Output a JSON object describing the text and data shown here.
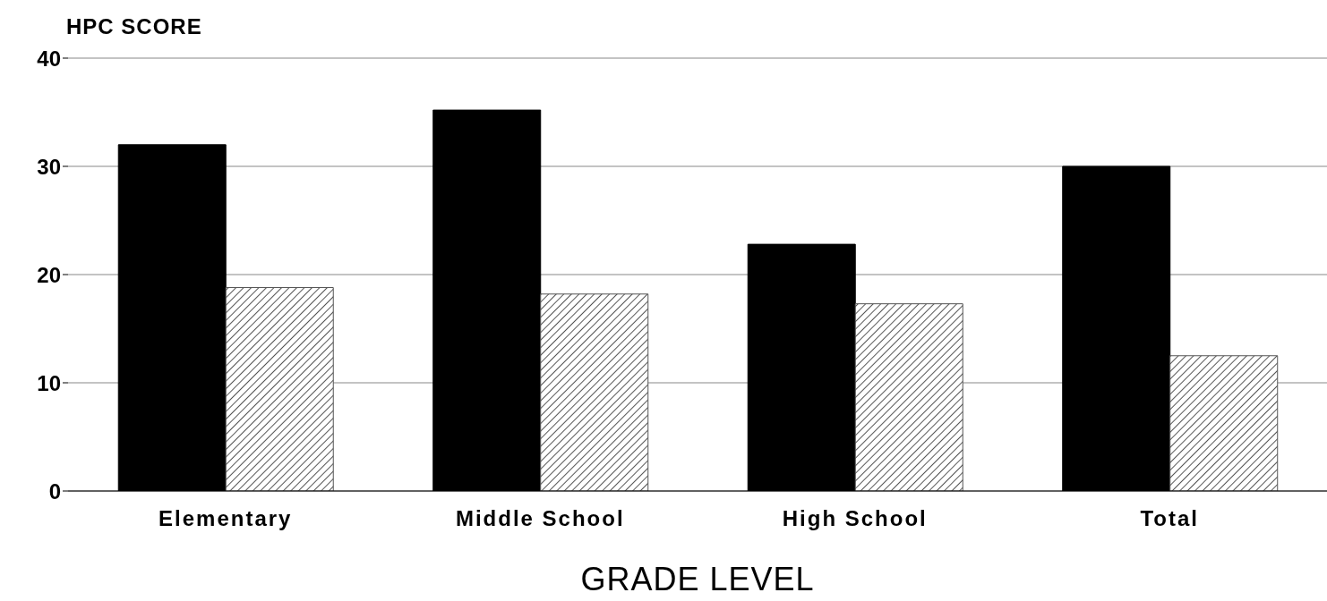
{
  "chart_data": {
    "type": "bar",
    "xlabel": "GRADE LEVEL",
    "ylabel": "HPC SCORE",
    "categories": [
      "Elementary",
      "Middle School",
      "High School",
      "Total"
    ],
    "series": [
      {
        "color": "#000000",
        "values": [
          32,
          35.2,
          22.8,
          30
        ]
      },
      {
        "color": "#555555",
        "values": [
          18.8,
          18.2,
          17.3,
          12.5
        ]
      }
    ],
    "ylim": [
      0,
      40
    ],
    "yticks": [
      0,
      10,
      20,
      30,
      40
    ],
    "grid": "y"
  }
}
